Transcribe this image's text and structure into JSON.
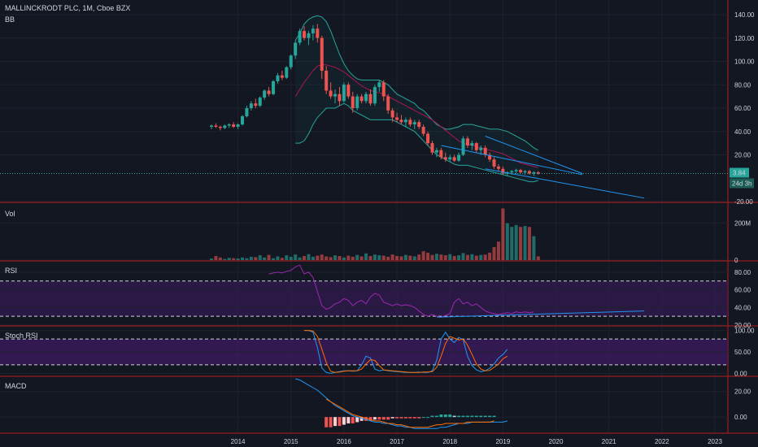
{
  "chart_data": [
    {
      "type": "candlestick",
      "title": "MALLINCKRODT PLC, 1M, Cboe BZX",
      "indicator": "BB",
      "ylim": [
        -20,
        140
      ],
      "yticks": [
        -20,
        20,
        40,
        60,
        80,
        100,
        120,
        140
      ],
      "ytick_labels": [
        "-20.00",
        "20.00",
        "40.00",
        "60.00",
        "80.00",
        "100.00",
        "120.00",
        "140.00"
      ],
      "last_price_label": "3.84",
      "countdown_label": "24d 3h",
      "x_start": "2013-07",
      "ohlc": [
        [
          44,
          46,
          42,
          45
        ],
        [
          45,
          47,
          43,
          44
        ],
        [
          44,
          45,
          41,
          43
        ],
        [
          43,
          46,
          42,
          45
        ],
        [
          45,
          47,
          43,
          46
        ],
        [
          46,
          48,
          43,
          44
        ],
        [
          44,
          47,
          42,
          46
        ],
        [
          46,
          54,
          45,
          53
        ],
        [
          53,
          62,
          52,
          60
        ],
        [
          60,
          66,
          58,
          64
        ],
        [
          64,
          68,
          60,
          62
        ],
        [
          62,
          70,
          61,
          69
        ],
        [
          69,
          76,
          67,
          75
        ],
        [
          75,
          78,
          70,
          72
        ],
        [
          72,
          84,
          71,
          83
        ],
        [
          83,
          90,
          81,
          88
        ],
        [
          88,
          92,
          84,
          86
        ],
        [
          86,
          96,
          85,
          95
        ],
        [
          95,
          106,
          93,
          105
        ],
        [
          105,
          118,
          102,
          116
        ],
        [
          116,
          128,
          114,
          126
        ],
        [
          126,
          130,
          118,
          120
        ],
        [
          120,
          126,
          114,
          124
        ],
        [
          124,
          131,
          118,
          128
        ],
        [
          128,
          132,
          116,
          120
        ],
        [
          120,
          122,
          85,
          92
        ],
        [
          92,
          96,
          72,
          75
        ],
        [
          75,
          82,
          68,
          70
        ],
        [
          70,
          76,
          64,
          72
        ],
        [
          72,
          78,
          62,
          66
        ],
        [
          66,
          82,
          65,
          80
        ],
        [
          80,
          82,
          68,
          70
        ],
        [
          70,
          74,
          56,
          60
        ],
        [
          60,
          72,
          58,
          70
        ],
        [
          70,
          72,
          64,
          66
        ],
        [
          66,
          74,
          64,
          72
        ],
        [
          72,
          76,
          62,
          64
        ],
        [
          64,
          80,
          62,
          78
        ],
        [
          78,
          84,
          74,
          82
        ],
        [
          82,
          84,
          66,
          70
        ],
        [
          70,
          72,
          55,
          58
        ],
        [
          58,
          60,
          48,
          52
        ],
        [
          52,
          56,
          48,
          50
        ],
        [
          50,
          54,
          46,
          48
        ],
        [
          48,
          52,
          44,
          50
        ],
        [
          50,
          52,
          44,
          46
        ],
        [
          46,
          50,
          42,
          48
        ],
        [
          48,
          50,
          42,
          44
        ],
        [
          44,
          46,
          36,
          38
        ],
        [
          38,
          40,
          28,
          30
        ],
        [
          30,
          32,
          20,
          22
        ],
        [
          22,
          26,
          18,
          24
        ],
        [
          24,
          26,
          16,
          18
        ],
        [
          18,
          22,
          14,
          16
        ],
        [
          16,
          20,
          14,
          18
        ],
        [
          18,
          20,
          14,
          15
        ],
        [
          15,
          22,
          14,
          20
        ],
        [
          20,
          36,
          19,
          34
        ],
        [
          34,
          36,
          26,
          28
        ],
        [
          28,
          32,
          24,
          30
        ],
        [
          30,
          31,
          22,
          24
        ],
        [
          24,
          28,
          20,
          26
        ],
        [
          26,
          28,
          18,
          20
        ],
        [
          20,
          22,
          14,
          16
        ],
        [
          16,
          18,
          8,
          10
        ],
        [
          10,
          12,
          6,
          8
        ],
        [
          8,
          10,
          3,
          4
        ],
        [
          4,
          6,
          2,
          5
        ],
        [
          5,
          7,
          3,
          6
        ],
        [
          6,
          8,
          4,
          7
        ],
        [
          7,
          8,
          4,
          5
        ],
        [
          5,
          7,
          3,
          6
        ],
        [
          6,
          7,
          3,
          4
        ],
        [
          4,
          6,
          2,
          5
        ],
        [
          5,
          6,
          3,
          4
        ]
      ],
      "bb_upper": [
        null,
        null,
        null,
        null,
        null,
        null,
        null,
        null,
        null,
        null,
        null,
        null,
        null,
        null,
        null,
        null,
        null,
        null,
        null,
        118,
        124,
        132,
        136,
        138,
        139,
        138,
        134,
        126,
        116,
        106,
        98,
        92,
        88,
        85,
        84,
        84,
        84,
        84,
        84,
        82,
        80,
        76,
        72,
        70,
        68,
        66,
        64,
        60,
        58,
        54,
        50,
        46,
        44,
        42,
        42,
        43,
        44,
        46,
        46,
        46,
        45,
        44,
        43,
        42,
        42,
        42,
        41,
        40,
        38,
        36,
        34,
        32,
        29,
        26,
        24
      ],
      "bb_middle": [
        null,
        null,
        null,
        null,
        null,
        null,
        null,
        null,
        null,
        null,
        null,
        null,
        null,
        null,
        null,
        null,
        null,
        null,
        null,
        70,
        76,
        82,
        87,
        92,
        96,
        97,
        97,
        96,
        95,
        93,
        91,
        88,
        85,
        82,
        79,
        77,
        75,
        74,
        73,
        72,
        70,
        68,
        66,
        64,
        62,
        60,
        58,
        56,
        54,
        52,
        50,
        47,
        44,
        41,
        38,
        35,
        32,
        30,
        29,
        28,
        27,
        26,
        25,
        24,
        23,
        22,
        21,
        19,
        17,
        15,
        13,
        12,
        11,
        10,
        9
      ],
      "bb_lower": [
        null,
        null,
        null,
        null,
        null,
        null,
        null,
        null,
        null,
        null,
        null,
        null,
        null,
        null,
        null,
        null,
        null,
        null,
        null,
        30,
        30,
        32,
        38,
        46,
        52,
        56,
        60,
        60,
        60,
        62,
        64,
        62,
        58,
        56,
        54,
        52,
        50,
        50,
        50,
        50,
        50,
        50,
        48,
        46,
        44,
        42,
        40,
        36,
        32,
        28,
        24,
        20,
        18,
        16,
        14,
        12,
        11,
        11,
        11,
        10,
        9,
        8,
        7,
        6,
        5,
        4,
        3,
        2,
        1,
        0,
        -1,
        -2,
        -3,
        -3,
        -2
      ],
      "trendlines": [
        {
          "from": [
            "2017-11",
            28
          ],
          "to": [
            "2020-07",
            3
          ]
        },
        {
          "from": [
            "2018-09",
            36
          ],
          "to": [
            "2020-07",
            4
          ]
        },
        {
          "from": [
            "2018-09",
            8
          ],
          "to": [
            "2021-09",
            -17
          ]
        }
      ]
    },
    {
      "type": "bar",
      "indicator": "Vol",
      "ylim": [
        0,
        300
      ],
      "yticks": [
        0,
        200
      ],
      "ytick_labels": [
        "0",
        "200M"
      ],
      "values": [
        8,
        22,
        14,
        6,
        12,
        10,
        9,
        14,
        10,
        18,
        16,
        26,
        14,
        28,
        10,
        20,
        12,
        26,
        18,
        30,
        14,
        22,
        32,
        18,
        24,
        30,
        20,
        16,
        26,
        22,
        14,
        24,
        18,
        28,
        20,
        36,
        22,
        30,
        26,
        24,
        18,
        30,
        22,
        20,
        28,
        24,
        20,
        30,
        48,
        40,
        28,
        34,
        30,
        26,
        32,
        22,
        26,
        38,
        28,
        32,
        24,
        28,
        30,
        40,
        70,
        100,
        280,
        200,
        180,
        190,
        180,
        185,
        180,
        130,
        20
      ]
    },
    {
      "type": "line",
      "indicator": "RSI",
      "ylim": [
        20,
        90
      ],
      "yticks": [
        20,
        40,
        60,
        80
      ],
      "ytick_labels": [
        "20.00",
        "40.00",
        "60.00",
        "80.00"
      ],
      "bands": [
        30,
        70
      ],
      "values": [
        null,
        null,
        null,
        null,
        null,
        null,
        null,
        null,
        null,
        null,
        null,
        null,
        null,
        78,
        79,
        80,
        79,
        81,
        82,
        86,
        88,
        78,
        80,
        74,
        58,
        42,
        38,
        40,
        44,
        46,
        50,
        48,
        42,
        46,
        48,
        44,
        52,
        56,
        54,
        46,
        44,
        42,
        44,
        42,
        43,
        42,
        40,
        36,
        32,
        30,
        32,
        30,
        29,
        31,
        33,
        46,
        50,
        44,
        46,
        42,
        44,
        40,
        36,
        34,
        33,
        32,
        33,
        34,
        33,
        35,
        34,
        35,
        34,
        35
      ],
      "trendline": {
        "from": [
          "2017-10",
          29
        ],
        "to": [
          "2021-09",
          36
        ]
      }
    },
    {
      "type": "line",
      "indicator": "Stoch RSI",
      "ylim": [
        -5,
        105
      ],
      "yticks": [
        0,
        50,
        100
      ],
      "ytick_labels": [
        "0.00",
        "50.00",
        "100.00"
      ],
      "bands": [
        20,
        80
      ],
      "k": [
        null,
        null,
        null,
        null,
        null,
        null,
        null,
        null,
        null,
        null,
        null,
        null,
        null,
        null,
        null,
        null,
        null,
        null,
        null,
        null,
        null,
        100,
        100,
        96,
        60,
        12,
        2,
        0,
        2,
        4,
        6,
        6,
        5,
        6,
        20,
        40,
        36,
        10,
        6,
        8,
        6,
        5,
        4,
        3,
        2,
        2,
        2,
        3,
        2,
        2,
        6,
        30,
        80,
        96,
        80,
        72,
        84,
        78,
        40,
        18,
        8,
        4,
        6,
        12,
        22,
        36,
        44,
        56
      ],
      "d": [
        null,
        null,
        null,
        null,
        null,
        null,
        null,
        null,
        null,
        null,
        null,
        null,
        null,
        null,
        null,
        null,
        null,
        null,
        null,
        null,
        null,
        100,
        100,
        99,
        86,
        56,
        25,
        5,
        2,
        3,
        5,
        6,
        6,
        6,
        10,
        22,
        32,
        30,
        18,
        8,
        7,
        6,
        5,
        4,
        3,
        2,
        2,
        2,
        3,
        3,
        4,
        14,
        40,
        70,
        86,
        82,
        78,
        80,
        66,
        44,
        22,
        10,
        6,
        7,
        14,
        22,
        34,
        40
      ]
    },
    {
      "type": "line",
      "indicator": "MACD",
      "ylim": [
        -12,
        30
      ],
      "yticks": [
        0,
        20
      ],
      "ytick_labels": [
        "0.00",
        "20.00"
      ],
      "macd": [
        null,
        null,
        null,
        null,
        null,
        null,
        null,
        null,
        null,
        null,
        null,
        null,
        null,
        null,
        null,
        null,
        null,
        null,
        null,
        30,
        29,
        27,
        25,
        23,
        21,
        18,
        15,
        12,
        9,
        7,
        5,
        3,
        1,
        0,
        -1,
        -2,
        -3,
        -4,
        -4,
        -5,
        -5,
        -6,
        -7,
        -7,
        -8,
        -8,
        -9,
        -9,
        -9,
        -9,
        -9,
        -9,
        -8,
        -8,
        -7,
        -6,
        -5,
        -5,
        -5,
        -4,
        -4,
        -4,
        -4,
        -4,
        -4,
        -4,
        -4,
        -3
      ],
      "signal": [
        null,
        null,
        null,
        null,
        null,
        null,
        null,
        null,
        null,
        null,
        null,
        null,
        null,
        null,
        null,
        null,
        null,
        null,
        null,
        null,
        null,
        null,
        null,
        null,
        null,
        null,
        14,
        12,
        10,
        8,
        6,
        4,
        2,
        1,
        0,
        -1,
        -2,
        -3,
        -3,
        -4,
        -5,
        -5,
        -6,
        -6,
        -7,
        -8,
        -8,
        -8,
        -8,
        -8,
        -7,
        -6,
        -6,
        -5,
        -5,
        -5,
        -5,
        -5,
        -4,
        -4,
        -4,
        -4,
        -4,
        -4,
        -3
      ],
      "histogram": [
        null,
        null,
        null,
        null,
        null,
        null,
        null,
        null,
        null,
        null,
        null,
        null,
        null,
        null,
        null,
        null,
        null,
        null,
        null,
        null,
        null,
        null,
        null,
        null,
        null,
        null,
        -8,
        -8,
        -7,
        -7,
        -6,
        -5,
        -5,
        -4,
        -3,
        -3,
        -3,
        -2,
        -2,
        -2,
        -2,
        -1,
        -1,
        -1,
        -1,
        -1,
        -1,
        -1,
        0,
        0,
        1,
        1,
        2,
        2,
        2,
        1,
        1,
        1,
        1,
        1,
        1,
        1,
        1,
        1,
        1
      ]
    }
  ],
  "x_axis": {
    "labels": [
      "2014",
      "2015",
      "2016",
      "2017",
      "2018",
      "2019",
      "2020",
      "2021",
      "2022",
      "2023"
    ]
  },
  "colors": {
    "background": "#131722",
    "up": "#26a69a",
    "down": "#ef5350",
    "bb_band": "#26a69a",
    "bb_basis": "#ad1457",
    "rsi_line": "#9c27b0",
    "band_fill": "#3c1a5e",
    "trend": "#2196f3",
    "macd_line": "#2196f3",
    "signal_line": "#ff6d00",
    "separator": "#b71c1c",
    "grid": "#1e222d"
  }
}
